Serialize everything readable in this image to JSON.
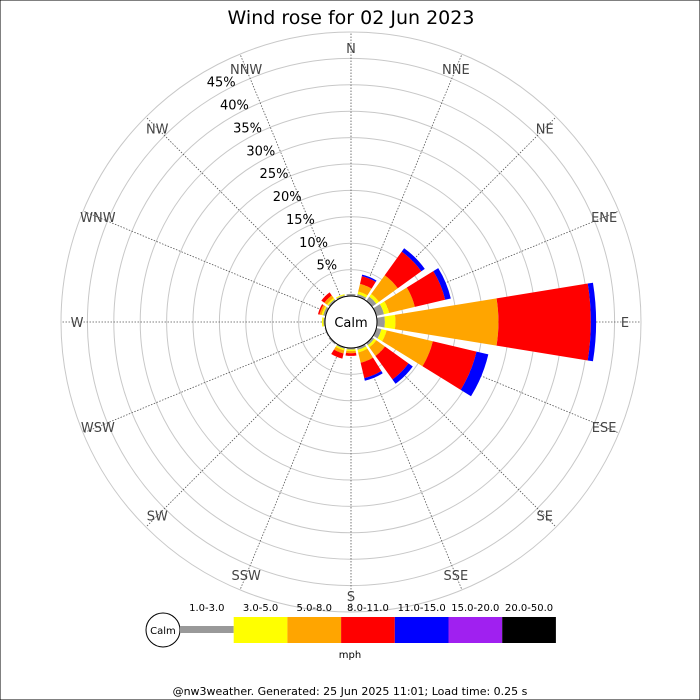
{
  "chart_data": {
    "type": "windrose",
    "title": "Wind rose for 02 Jun 2023",
    "directions": [
      "N",
      "NNE",
      "NE",
      "ENE",
      "E",
      "ESE",
      "SE",
      "SSE",
      "S",
      "SSW",
      "SW",
      "WSW",
      "W",
      "WNW",
      "NW",
      "NNW"
    ],
    "radial_ticks": [
      "5%",
      "10%",
      "15%",
      "20%",
      "25%",
      "30%",
      "35%",
      "40%",
      "45%"
    ],
    "radial_max": 50,
    "calm_label": "Calm",
    "speed_bins": [
      "1.0-3.0",
      "3.0-5.0",
      "5.0-8.0",
      "8.0-11.0",
      "11.0-15.0",
      "15.0-20.0",
      "20.0-50.0"
    ],
    "bin_colors": [
      "#999999",
      "#ffff00",
      "#ffa500",
      "#ff0000",
      "#0000ff",
      "#a020f0",
      "#000000"
    ],
    "units": "mph",
    "series": [
      {
        "direction": "N",
        "cumulative": [
          0.4,
          0.4,
          0.4,
          0.4,
          0.4
        ]
      },
      {
        "direction": "NNE",
        "cumulative": [
          0.5,
          1.0,
          2.5,
          4.0,
          4.3
        ]
      },
      {
        "direction": "NE",
        "cumulative": [
          1.0,
          1.6,
          6.0,
          11.5,
          12.3
        ]
      },
      {
        "direction": "ENE",
        "cumulative": [
          1.5,
          2.5,
          7.5,
          13.4,
          14.5
        ]
      },
      {
        "direction": "E",
        "cumulative": [
          1.5,
          3.5,
          23.0,
          40.5,
          41.5
        ]
      },
      {
        "direction": "ESE",
        "cumulative": [
          1.0,
          2.0,
          11.0,
          19.5,
          21.8
        ]
      },
      {
        "direction": "SE",
        "cumulative": [
          0.5,
          1.0,
          3.0,
          8.5,
          9.5
        ]
      },
      {
        "direction": "SSE",
        "cumulative": [
          0.5,
          1.0,
          3.0,
          6.0,
          6.5
        ]
      },
      {
        "direction": "S",
        "cumulative": [
          0.3,
          0.6,
          1.0,
          1.5,
          1.5
        ]
      },
      {
        "direction": "SSW",
        "cumulative": [
          0.3,
          0.6,
          1.2,
          2.2,
          2.2
        ]
      },
      {
        "direction": "SW",
        "cumulative": [
          0.3,
          0.3,
          0.3,
          0.3,
          0.3
        ]
      },
      {
        "direction": "WSW",
        "cumulative": [
          0.2,
          0.2,
          0.2,
          0.2,
          0.2
        ]
      },
      {
        "direction": "W",
        "cumulative": [
          0.3,
          0.6,
          0.6,
          0.6,
          0.6
        ]
      },
      {
        "direction": "WNW",
        "cumulative": [
          0.5,
          0.8,
          1.2,
          1.5,
          1.5
        ]
      },
      {
        "direction": "NW",
        "cumulative": [
          0.4,
          0.7,
          1.3,
          2.0,
          2.0
        ]
      },
      {
        "direction": "NNW",
        "cumulative": [
          0.3,
          0.5,
          0.5,
          0.5,
          0.5
        ]
      }
    ]
  },
  "footer": "@nw3weather. Generated: 25 Jun 2025 11:01; Load time: 0.25 s"
}
